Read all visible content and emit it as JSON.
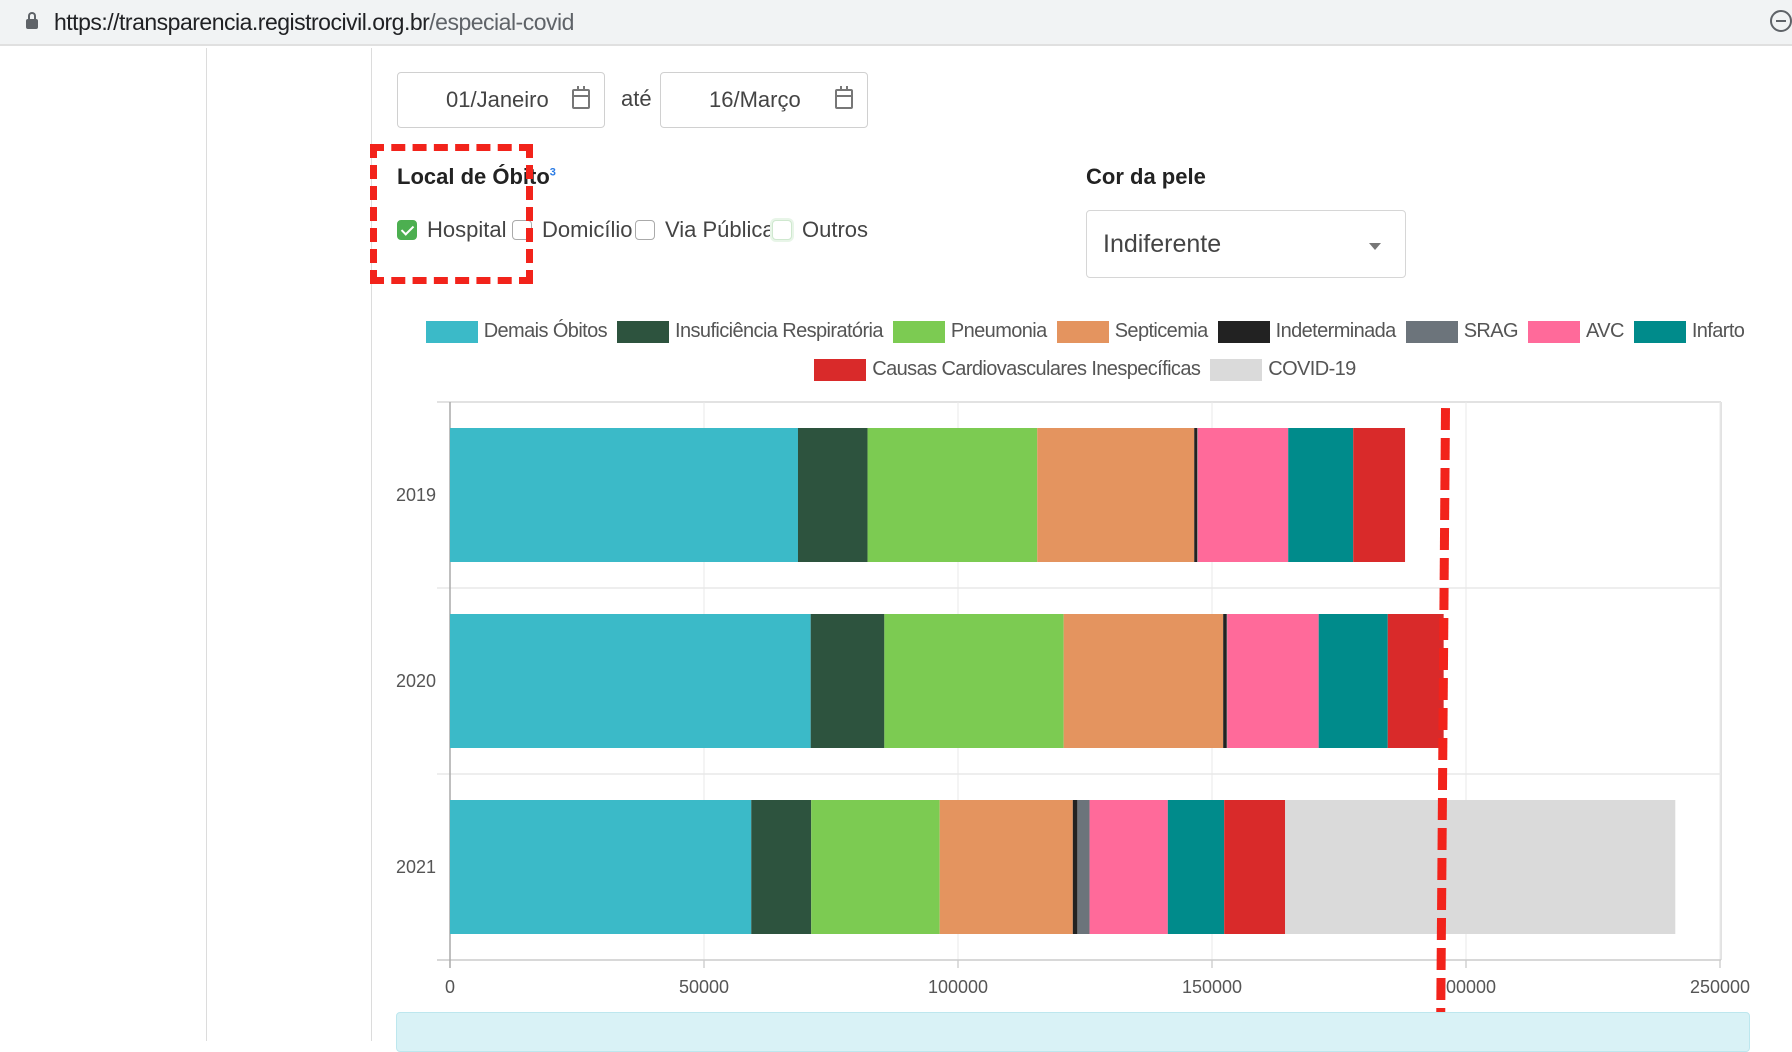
{
  "browser": {
    "url_host": "https://transparencia.registrocivil.org.br",
    "url_path": "/especial-covid"
  },
  "filters": {
    "date_from": "01/Janeiro",
    "date_separator": "até",
    "date_to": "16/Março",
    "local_obito": {
      "label": "Local de Óbito",
      "footnote": "3",
      "options": [
        {
          "label": "Hospital",
          "checked": true
        },
        {
          "label": "Domicílio",
          "checked": false
        },
        {
          "label": "Via Pública",
          "checked": false
        },
        {
          "label": "Outros",
          "checked": false
        }
      ]
    },
    "cor_da_pele": {
      "label": "Cor da pele",
      "value": "Indiferente"
    }
  },
  "colors": {
    "highlight": "#f2231b",
    "checkbox_checked": "#4caf50"
  },
  "chart_data": {
    "type": "bar",
    "orientation": "horizontal",
    "stacked": true,
    "categories": [
      "2019",
      "2020",
      "2021"
    ],
    "series": [
      {
        "name": "Demais Óbitos",
        "color": "#3bbac8",
        "values": [
          68500,
          71000,
          59300
        ]
      },
      {
        "name": "Insuficiência Respiratória",
        "color": "#2d533e",
        "values": [
          13700,
          14500,
          11800
        ]
      },
      {
        "name": "Pneumonia",
        "color": "#7ccb52",
        "values": [
          33400,
          35300,
          25300
        ]
      },
      {
        "name": "Septicemia",
        "color": "#e4945f",
        "values": [
          30900,
          31400,
          26200
        ]
      },
      {
        "name": "Indeterminada",
        "color": "#222222",
        "values": [
          600,
          700,
          900
        ]
      },
      {
        "name": "SRAG",
        "color": "#6c747b",
        "values": [
          100,
          100,
          2400
        ]
      },
      {
        "name": "AVC",
        "color": "#ff6a9a",
        "values": [
          17800,
          18000,
          15400
        ]
      },
      {
        "name": "Infarto",
        "color": "#008b8b",
        "values": [
          12800,
          13600,
          11100
        ]
      },
      {
        "name": "Causas Cardiovasculares Inespecíficas",
        "color": "#d92a2a",
        "values": [
          10200,
          11000,
          12000
        ]
      },
      {
        "name": "COVID-19",
        "color": "#dadada",
        "values": [
          0,
          0,
          76800
        ]
      }
    ],
    "xlim": [
      0,
      250000
    ],
    "xticks": [
      0,
      50000,
      100000,
      150000,
      200000,
      250000
    ],
    "xlabel": "",
    "ylabel": "",
    "grid": true,
    "legend_position": "top",
    "annotation_line_x": 196500
  }
}
